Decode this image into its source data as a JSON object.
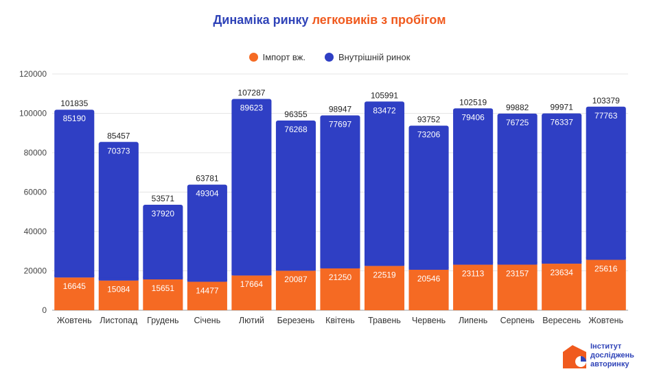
{
  "title": {
    "part1": "Динаміка ринку",
    "part2": "легковиків з пробігом"
  },
  "colors": {
    "import": "#f56a23",
    "domestic": "#2f3fc4",
    "title_blue": "#2f43b8",
    "title_orange": "#f05a1e"
  },
  "legend": [
    {
      "label": "Імпорт вж.",
      "color": "#f56a23"
    },
    {
      "label": "Внутрішній ринок",
      "color": "#2f3fc4"
    }
  ],
  "logo": {
    "line1": "Інститут",
    "line2": "досліджень",
    "line3": "авторинку"
  },
  "chart_data": {
    "type": "bar",
    "stacked": true,
    "categories": [
      "Жовтень",
      "Листопад",
      "Грудень",
      "Січень",
      "Лютий",
      "Березень",
      "Квітень",
      "Травень",
      "Червень",
      "Липень",
      "Серпень",
      "Вересень",
      "Жовтень"
    ],
    "series": [
      {
        "name": "Імпорт вж.",
        "values": [
          16645,
          15084,
          15651,
          14477,
          17664,
          20087,
          21250,
          22519,
          20546,
          23113,
          23157,
          23634,
          25616
        ]
      },
      {
        "name": "Внутрішній ринок",
        "values": [
          85190,
          70373,
          37920,
          49304,
          89623,
          76268,
          77697,
          83472,
          73206,
          79406,
          76725,
          76337,
          77763
        ]
      }
    ],
    "totals": [
      101835,
      85457,
      53571,
      63781,
      107287,
      96355,
      98947,
      105991,
      93752,
      102519,
      99882,
      99971,
      103379
    ],
    "yticks": [
      0,
      20000,
      40000,
      60000,
      80000,
      100000,
      120000
    ],
    "ylim": [
      0,
      120000
    ],
    "grid": true,
    "legend_position": "top"
  }
}
